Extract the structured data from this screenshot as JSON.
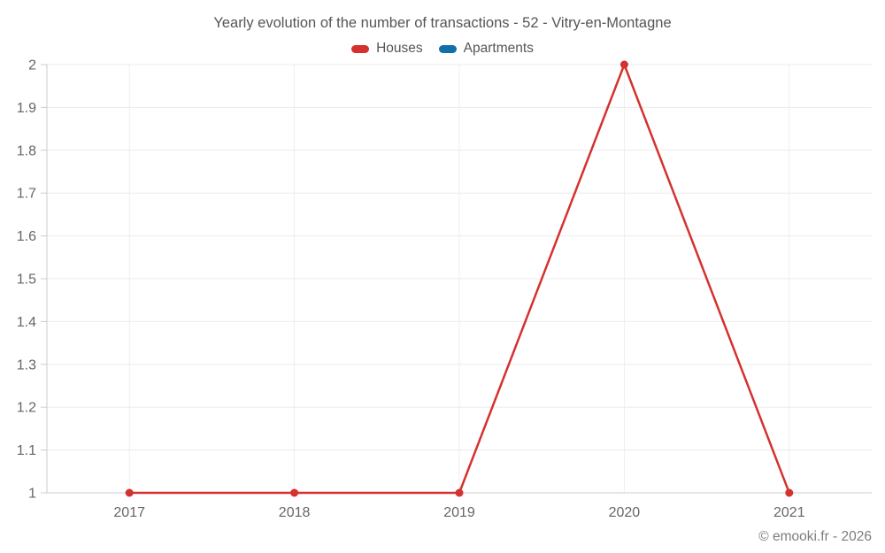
{
  "chart_data": {
    "type": "line",
    "title": "Yearly evolution of the number of transactions - 52 - Vitry-en-Montagne",
    "categories": [
      "2017",
      "2018",
      "2019",
      "2020",
      "2021"
    ],
    "series": [
      {
        "name": "Houses",
        "color": "#d5312e",
        "values": [
          1,
          1,
          1,
          2,
          1
        ]
      },
      {
        "name": "Apartments",
        "color": "#126fa8",
        "values": []
      }
    ],
    "ylim": [
      1,
      2
    ],
    "ytick_step": 0.1,
    "ytick_labels": [
      "1",
      "1.1",
      "1.2",
      "1.3",
      "1.4",
      "1.5",
      "1.6",
      "1.7",
      "1.8",
      "1.9",
      "2"
    ],
    "grid": true,
    "legend_position": "top",
    "xlabel": "",
    "ylabel": "",
    "footer": "© emooki.fr - 2026",
    "colors": {
      "axis_line": "#cccccc",
      "grid_line_horizontal": "#ebebeb",
      "grid_line_vertical": "#efefef",
      "axis_label": "#666666",
      "title_text": "#555555",
      "footer_text": "#7d7d7d"
    }
  }
}
